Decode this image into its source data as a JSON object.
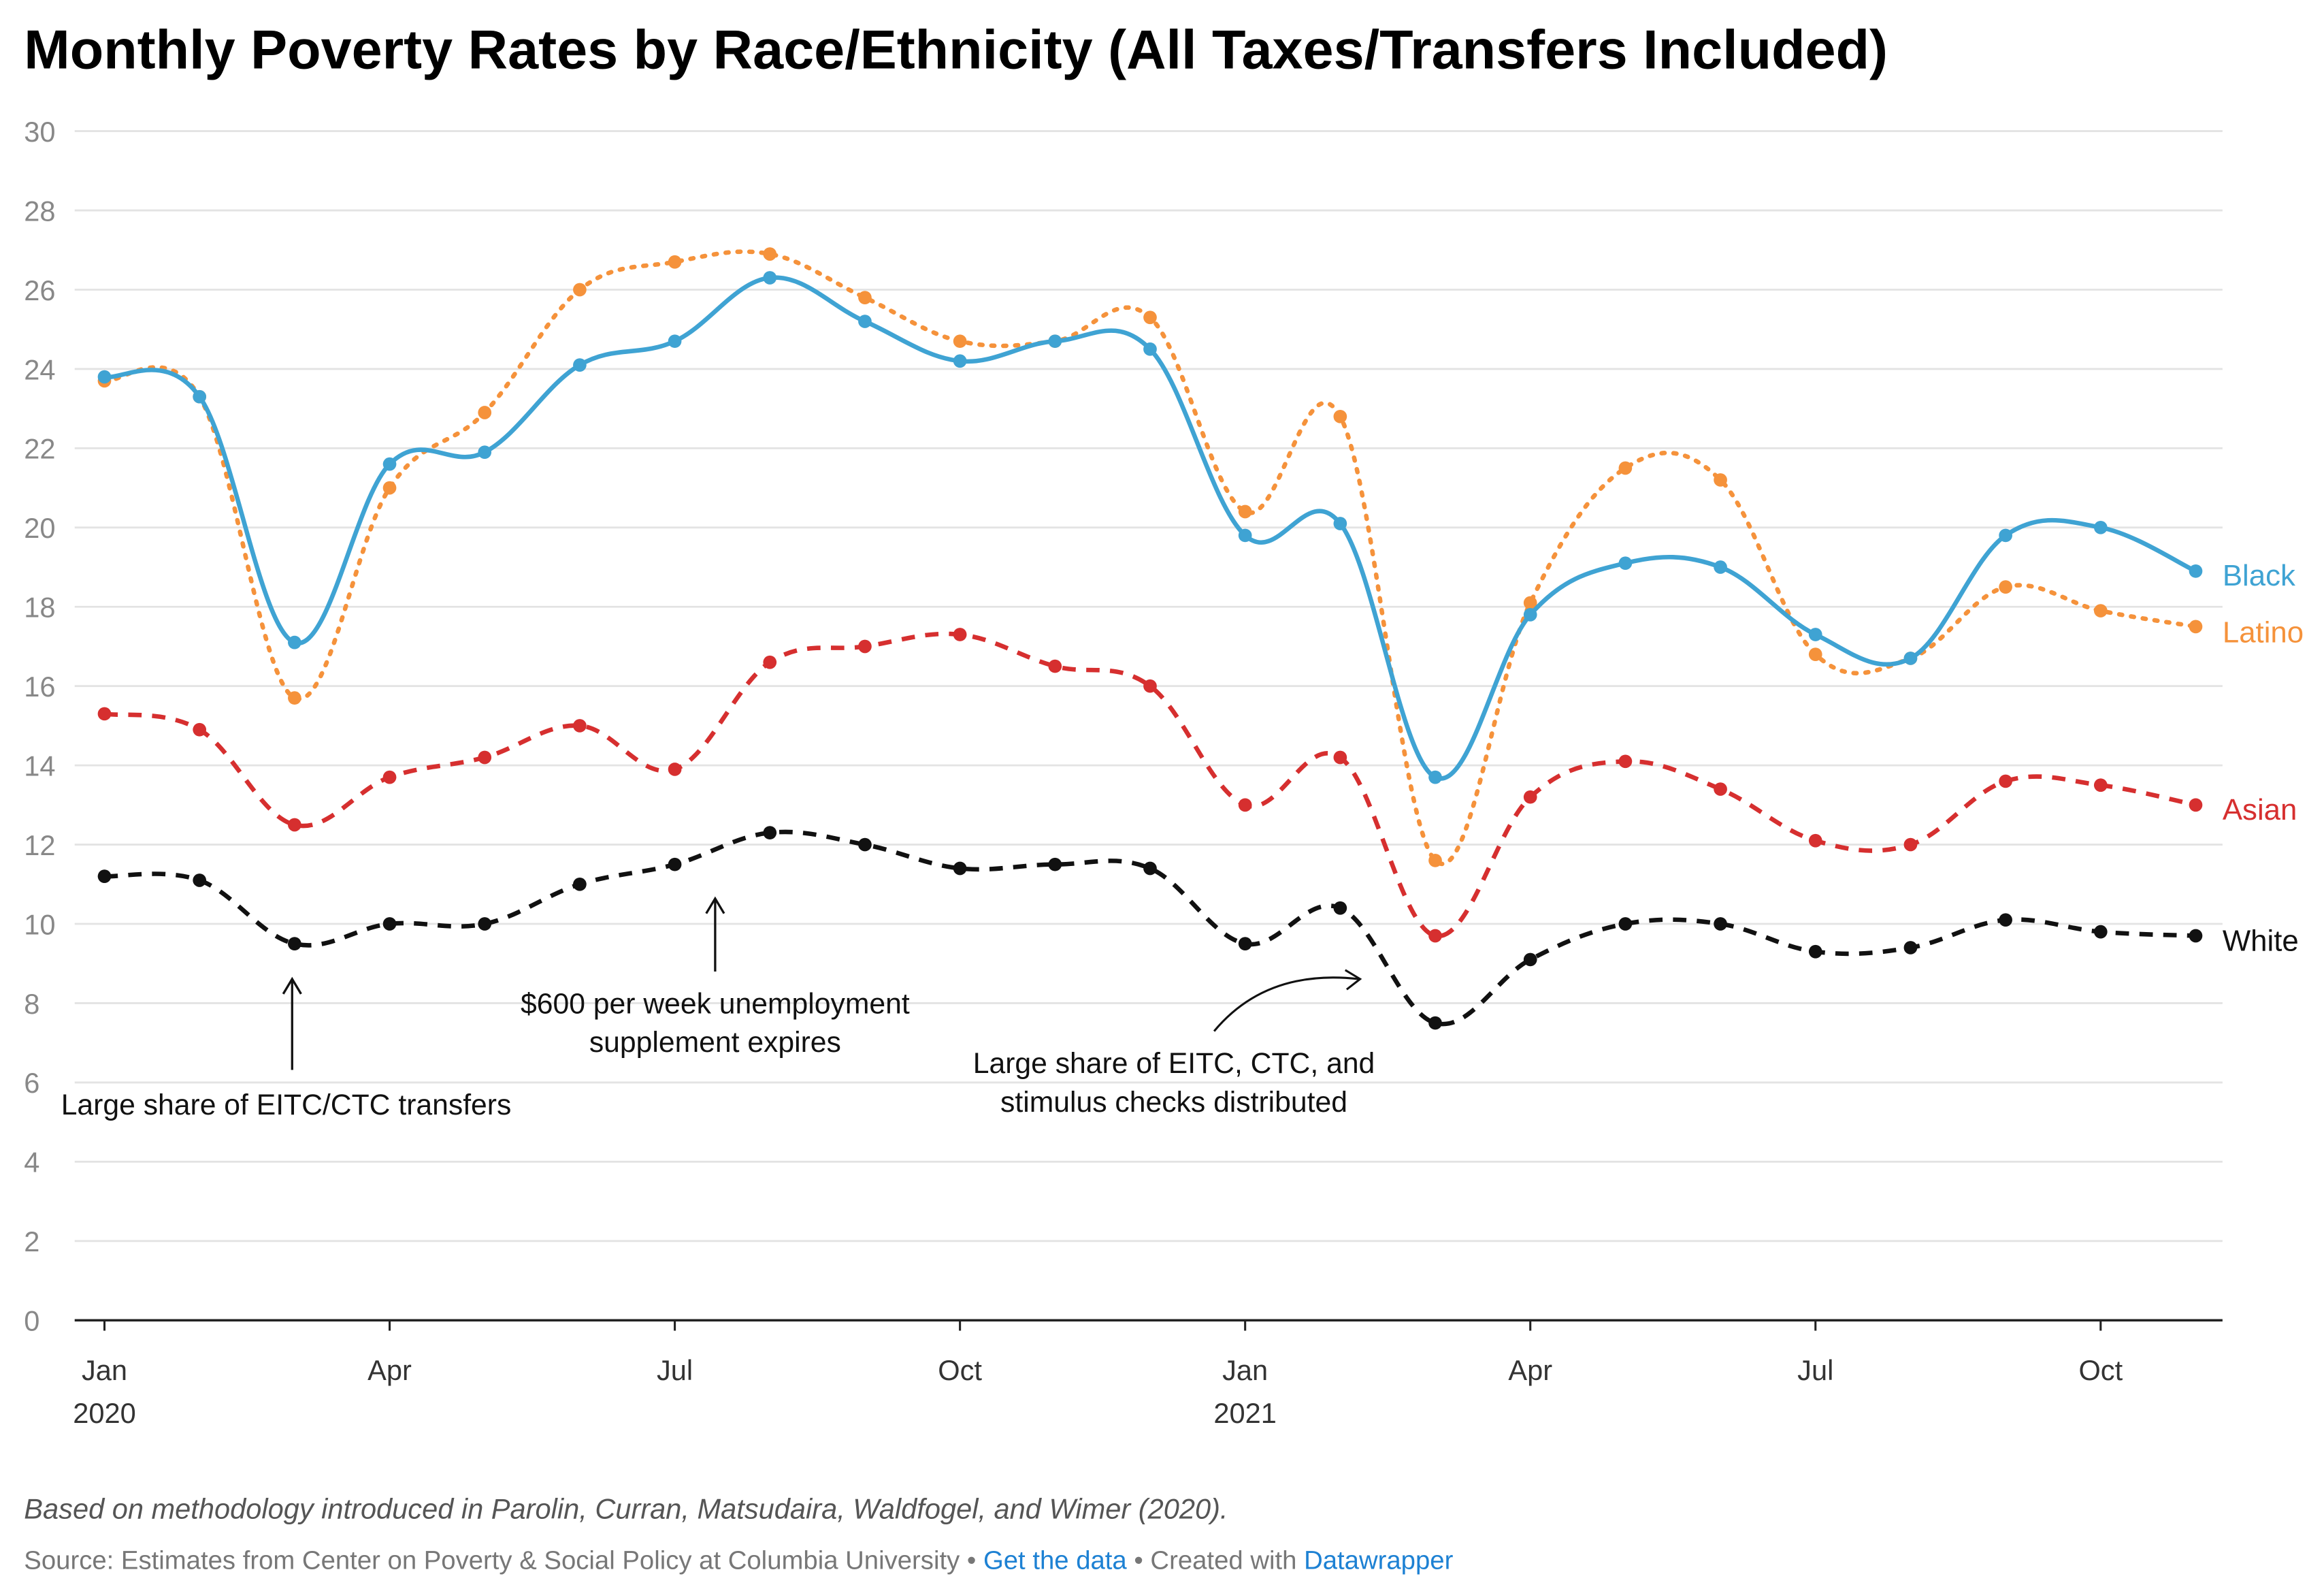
{
  "chart_data": {
    "type": "line",
    "title": "Monthly Poverty Rates by Race/Ethnicity (All Taxes/Transfers Included)",
    "xlabel": "",
    "ylabel": "",
    "ylim": [
      0,
      30
    ],
    "yticks": [
      "0",
      "2",
      "4",
      "6",
      "8",
      "10",
      "12",
      "14",
      "16",
      "18",
      "20",
      "22",
      "24",
      "26",
      "28",
      "30"
    ],
    "x": [
      "2020-01",
      "2020-02",
      "2020-03",
      "2020-04",
      "2020-05",
      "2020-06",
      "2020-07",
      "2020-08",
      "2020-09",
      "2020-10",
      "2020-11",
      "2020-12",
      "2021-01",
      "2021-02",
      "2021-03",
      "2021-04",
      "2021-05",
      "2021-06",
      "2021-07",
      "2021-08",
      "2021-09",
      "2021-10",
      "2021-11"
    ],
    "xticks": [
      {
        "index": 0,
        "label": "Jan",
        "year": "2020"
      },
      {
        "index": 3,
        "label": "Apr",
        "year": ""
      },
      {
        "index": 6,
        "label": "Jul",
        "year": ""
      },
      {
        "index": 9,
        "label": "Oct",
        "year": ""
      },
      {
        "index": 12,
        "label": "Jan",
        "year": "2021"
      },
      {
        "index": 15,
        "label": "Apr",
        "year": ""
      },
      {
        "index": 18,
        "label": "Jul",
        "year": ""
      },
      {
        "index": 21,
        "label": "Oct",
        "year": ""
      }
    ],
    "grid": true,
    "legend": "direct-labels-right",
    "series": [
      {
        "name": "Black",
        "color": "#3fa3d3",
        "style": "solid",
        "values": [
          23.8,
          23.3,
          17.1,
          21.6,
          21.9,
          24.1,
          24.7,
          26.3,
          25.2,
          24.2,
          24.7,
          24.5,
          19.8,
          20.1,
          13.7,
          17.8,
          19.1,
          19.0,
          17.3,
          16.7,
          19.8,
          20.0,
          18.9
        ]
      },
      {
        "name": "Latino",
        "color": "#f5923b",
        "style": "dotted",
        "values": [
          23.7,
          23.3,
          15.7,
          21.0,
          22.9,
          26.0,
          26.7,
          26.9,
          25.8,
          24.7,
          24.7,
          25.3,
          20.4,
          22.8,
          11.6,
          18.1,
          21.5,
          21.2,
          16.8,
          16.7,
          18.5,
          17.9,
          17.5
        ]
      },
      {
        "name": "Asian",
        "color": "#d62f2f",
        "style": "dashed",
        "values": [
          15.3,
          14.9,
          12.5,
          13.7,
          14.2,
          15.0,
          13.9,
          16.6,
          17.0,
          17.3,
          16.5,
          16.0,
          13.0,
          14.2,
          9.7,
          13.2,
          14.1,
          13.4,
          12.1,
          12.0,
          13.6,
          13.5,
          13.0
        ]
      },
      {
        "name": "White",
        "color": "#111111",
        "style": "dashed",
        "values": [
          11.2,
          11.1,
          9.5,
          10.0,
          10.0,
          11.0,
          11.5,
          12.3,
          12.0,
          11.4,
          11.5,
          11.4,
          9.5,
          10.4,
          7.5,
          9.1,
          10.0,
          10.0,
          9.3,
          9.4,
          10.1,
          9.8,
          9.7
        ]
      }
    ],
    "annotations": [
      {
        "text": [
          "Large share of EITC/CTC transfers"
        ],
        "points_to": "2020-03"
      },
      {
        "text": [
          "$600 per week unemployment",
          "supplement expires"
        ],
        "points_to": "2020-08"
      },
      {
        "text": [
          "Large share of EITC, CTC, and",
          "stimulus checks distributed"
        ],
        "points_to": "2021-03"
      }
    ]
  },
  "footer": {
    "note": "Based on methodology introduced in Parolin, Curran, Matsudaira, Waldfogel, and Wimer (2020).",
    "source": "Source: Estimates from Center on Poverty & Social Policy at Columbia University • ",
    "get_data": "Get the data",
    "created": " • Created with ",
    "datawrapper": "Datawrapper"
  }
}
